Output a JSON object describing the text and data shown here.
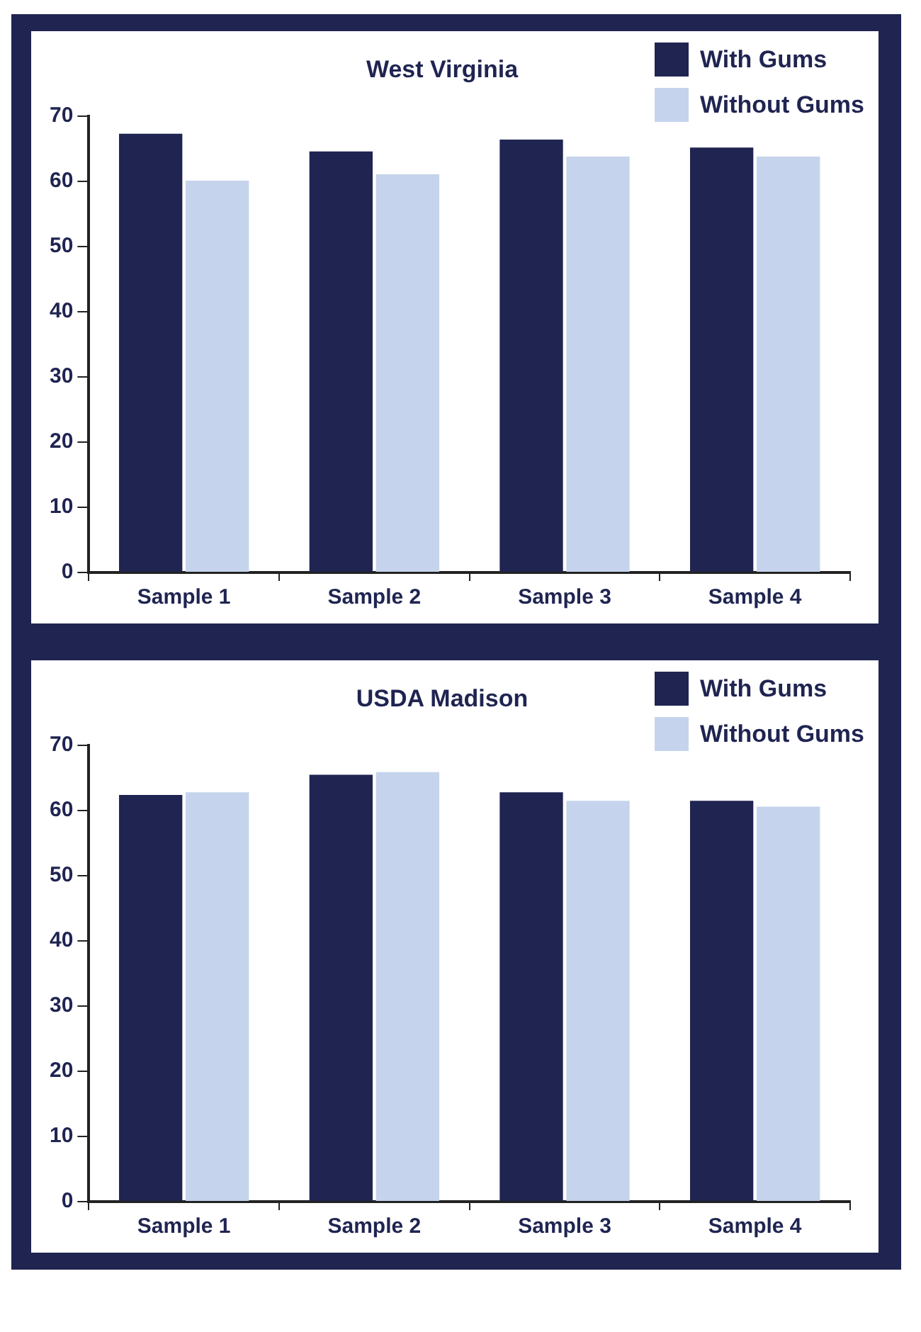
{
  "chart_data": [
    {
      "type": "bar",
      "title": "West Virginia",
      "categories": [
        "Sample 1",
        "Sample 2",
        "Sample 3",
        "Sample 4"
      ],
      "series": [
        {
          "name": "With Gums",
          "color": "#1f2451",
          "values": [
            67.3,
            64.6,
            66.4,
            65.2
          ]
        },
        {
          "name": "Without Gums",
          "color": "#c5d4ec",
          "values": [
            60.1,
            61.1,
            63.8,
            63.8
          ]
        }
      ],
      "ylim": [
        0,
        70
      ],
      "yticks": [
        0,
        10,
        20,
        30,
        40,
        50,
        60,
        70
      ],
      "grid": false,
      "legend": "top right"
    },
    {
      "type": "bar",
      "title": "USDA Madison",
      "categories": [
        "Sample 1",
        "Sample 2",
        "Sample 3",
        "Sample 4"
      ],
      "series": [
        {
          "name": "With Gums",
          "color": "#1f2451",
          "values": [
            62.4,
            65.5,
            62.8,
            61.5
          ]
        },
        {
          "name": "Without Gums",
          "color": "#c5d4ec",
          "values": [
            62.8,
            65.9,
            61.5,
            60.6
          ]
        }
      ],
      "ylim": [
        0,
        70
      ],
      "yticks": [
        0,
        10,
        20,
        30,
        40,
        50,
        60,
        70
      ],
      "grid": false,
      "legend": "top right"
    }
  ]
}
